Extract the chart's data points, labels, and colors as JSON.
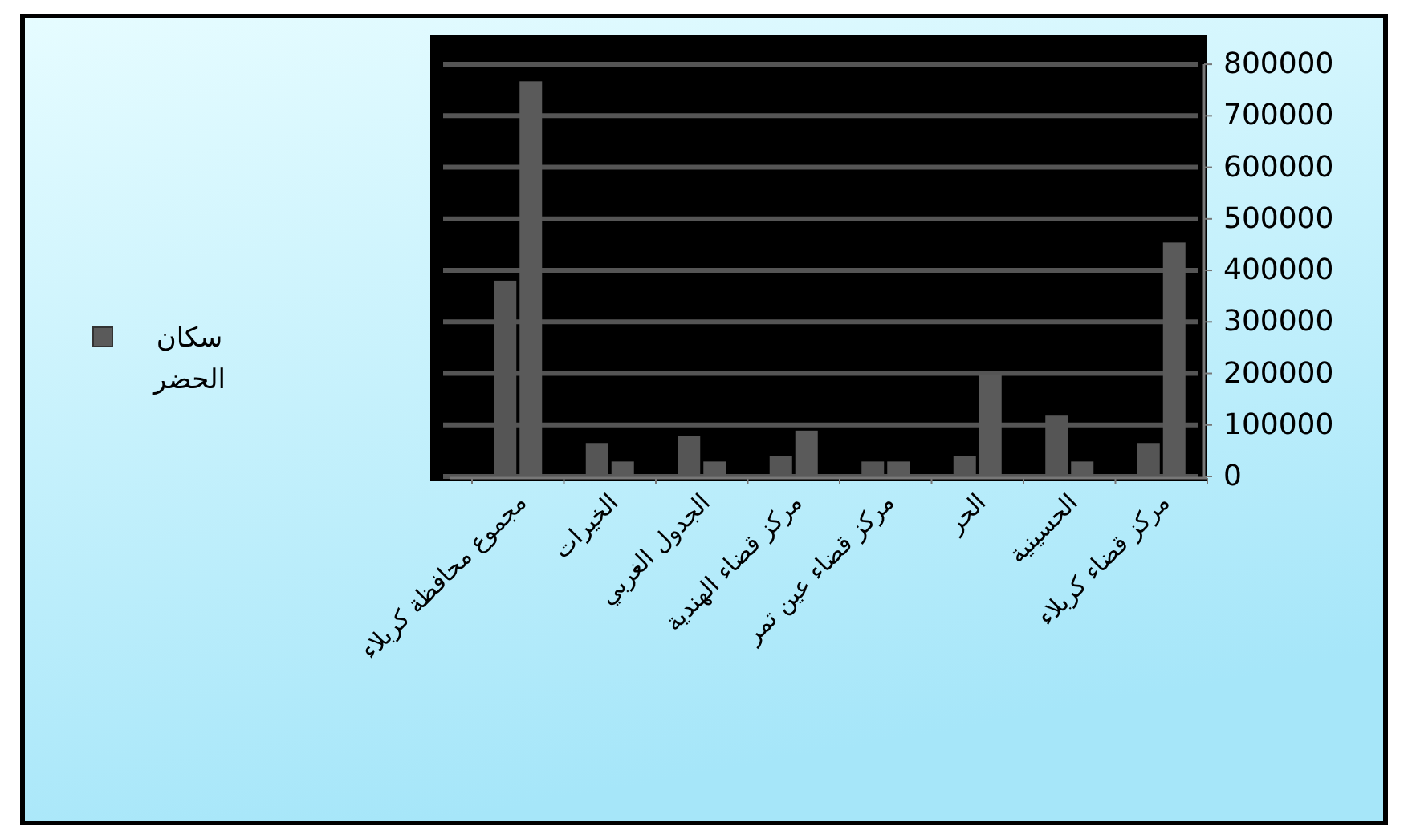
{
  "chart_data": {
    "type": "bar",
    "categories": [
      "مجموع محافظة كربلاء",
      "الخيرات",
      "الجدول الغربي",
      "مركز قضاء الهندية",
      "مركز قضاء عين تمر",
      "الحر",
      "الحسينية",
      "مركز قضاء كربلاء"
    ],
    "series": [
      {
        "color": "#555555",
        "values": [
          380000,
          65000,
          78000,
          39000,
          29000,
          39000,
          118000,
          65000
        ]
      },
      {
        "name": "سكان الحضر",
        "color": "#5a5a5a",
        "values": [
          767000,
          29000,
          29000,
          89000,
          29000,
          198000,
          29000,
          454000
        ]
      }
    ],
    "ylim": [
      0,
      850000
    ],
    "yticks": [
      0,
      100000,
      200000,
      300000,
      400000,
      500000,
      600000,
      700000,
      800000
    ],
    "grid": "y",
    "legend": "left"
  }
}
